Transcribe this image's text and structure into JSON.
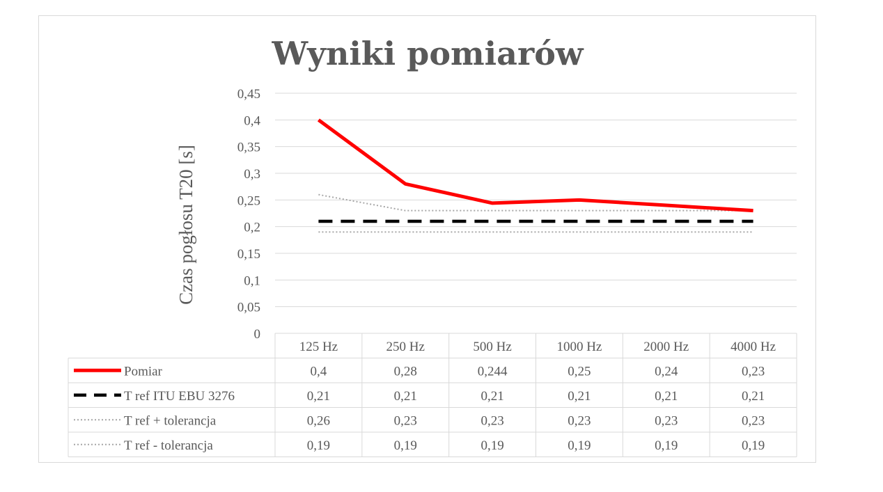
{
  "chart_data": {
    "type": "line",
    "title": "Wyniki pomiarów",
    "xlabel": "",
    "ylabel": "Czas pogłosu T20 [s]",
    "ylim": [
      0,
      0.45
    ],
    "yticks": [
      "0",
      "0,05",
      "0,1",
      "0,15",
      "0,2",
      "0,25",
      "0,3",
      "0,35",
      "0,4",
      "0,45"
    ],
    "categories": [
      "125 Hz",
      "250 Hz",
      "500 Hz",
      "1000 Hz",
      "2000 Hz",
      "4000 Hz"
    ],
    "grid": true,
    "legend": "data-table-below",
    "series": [
      {
        "name": "Pomiar",
        "values": [
          0.4,
          0.28,
          0.244,
          0.25,
          0.24,
          0.23
        ],
        "labels": [
          "0,4",
          "0,28",
          "0,244",
          "0,25",
          "0,24",
          "0,23"
        ],
        "color": "#ff0000",
        "style": "solid"
      },
      {
        "name": "T ref ITU EBU 3276",
        "values": [
          0.21,
          0.21,
          0.21,
          0.21,
          0.21,
          0.21
        ],
        "labels": [
          "0,21",
          "0,21",
          "0,21",
          "0,21",
          "0,21",
          "0,21"
        ],
        "color": "#000000",
        "style": "dashed"
      },
      {
        "name": "T ref + tolerancja",
        "values": [
          0.26,
          0.23,
          0.23,
          0.23,
          0.23,
          0.23
        ],
        "labels": [
          "0,26",
          "0,23",
          "0,23",
          "0,23",
          "0,23",
          "0,23"
        ],
        "color": "#a6a6a6",
        "style": "dotted"
      },
      {
        "name": "T ref - tolerancja",
        "values": [
          0.19,
          0.19,
          0.19,
          0.19,
          0.19,
          0.19
        ],
        "labels": [
          "0,19",
          "0,19",
          "0,19",
          "0,19",
          "0,19",
          "0,19"
        ],
        "color": "#a6a6a6",
        "style": "dotted"
      }
    ]
  }
}
